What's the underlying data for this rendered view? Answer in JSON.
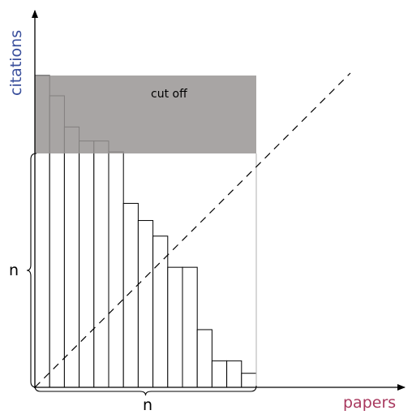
{
  "chart_data": {
    "type": "bar",
    "title": "",
    "xlabel": "papers",
    "ylabel": "citations",
    "values": [
      20,
      18.7,
      16.7,
      15.8,
      15.8,
      15.1,
      11.8,
      10.7,
      9.7,
      7.7,
      7.7,
      3.7,
      1.7,
      1.7,
      0.9
    ],
    "annotations": {
      "cutoff_label": "cut off",
      "h_index_x_label": "n",
      "h_index_y_label": "n",
      "h_index": 15
    },
    "colors": {
      "bar_fill": "#ffffff",
      "bar_stroke": "#000000",
      "cutoff_fill": "#999594",
      "ylabel_color": "#3a4f9c",
      "xlabel_color": "#a8385e"
    }
  }
}
